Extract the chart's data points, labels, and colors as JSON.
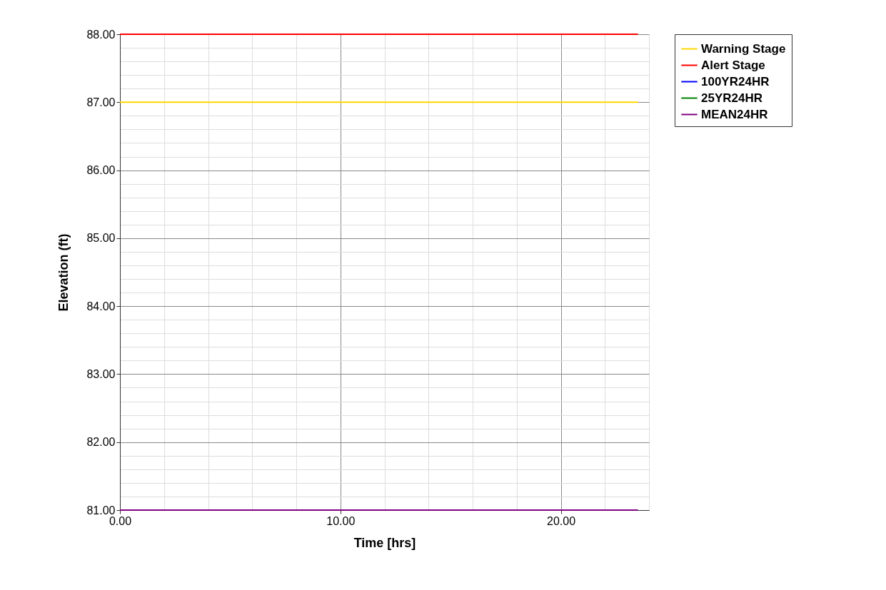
{
  "chart_data": {
    "type": "line",
    "xlabel": "Time [hrs]",
    "ylabel": "Elevation (ft)",
    "series": [
      {
        "name": "Warning Stage",
        "color": "#ffd700",
        "values": [
          87,
          87
        ]
      },
      {
        "name": "Alert Stage",
        "color": "#ff0000",
        "values": [
          88,
          88
        ]
      },
      {
        "name": "100YR24HR",
        "color": "#0000ff",
        "values": [
          null,
          null
        ]
      },
      {
        "name": "25YR24HR",
        "color": "#008000",
        "values": [
          null,
          null
        ]
      },
      {
        "name": "MEAN24HR",
        "color": "#800080",
        "values": [
          81,
          81
        ]
      }
    ],
    "x": [
      0,
      23.5
    ],
    "xlim": [
      0,
      24
    ],
    "xticks": [
      {
        "value": 0,
        "label": "0.00"
      },
      {
        "value": 2,
        "label": null
      },
      {
        "value": 4,
        "label": null
      },
      {
        "value": 6,
        "label": null
      },
      {
        "value": 8,
        "label": null
      },
      {
        "value": 10,
        "label": "10.00"
      },
      {
        "value": 12,
        "label": null
      },
      {
        "value": 14,
        "label": null
      },
      {
        "value": 16,
        "label": null
      },
      {
        "value": 18,
        "label": null
      },
      {
        "value": 20,
        "label": "20.00"
      },
      {
        "value": 22,
        "label": null
      }
    ],
    "ylim": [
      81,
      88
    ],
    "yticks": [
      {
        "value": 81,
        "label": "81.00"
      },
      {
        "value": 81.2,
        "label": null
      },
      {
        "value": 81.4,
        "label": null
      },
      {
        "value": 81.6,
        "label": null
      },
      {
        "value": 81.8,
        "label": null
      },
      {
        "value": 82,
        "label": "82.00"
      },
      {
        "value": 82.2,
        "label": null
      },
      {
        "value": 82.4,
        "label": null
      },
      {
        "value": 82.6,
        "label": null
      },
      {
        "value": 82.8,
        "label": null
      },
      {
        "value": 83,
        "label": "83.00"
      },
      {
        "value": 83.2,
        "label": null
      },
      {
        "value": 83.4,
        "label": null
      },
      {
        "value": 83.6,
        "label": null
      },
      {
        "value": 83.8,
        "label": null
      },
      {
        "value": 84,
        "label": "84.00"
      },
      {
        "value": 84.2,
        "label": null
      },
      {
        "value": 84.4,
        "label": null
      },
      {
        "value": 84.6,
        "label": null
      },
      {
        "value": 84.8,
        "label": null
      },
      {
        "value": 85,
        "label": "85.00"
      },
      {
        "value": 85.2,
        "label": null
      },
      {
        "value": 85.4,
        "label": null
      },
      {
        "value": 85.6,
        "label": null
      },
      {
        "value": 85.8,
        "label": null
      },
      {
        "value": 86,
        "label": "86.00"
      },
      {
        "value": 86.2,
        "label": null
      },
      {
        "value": 86.4,
        "label": null
      },
      {
        "value": 86.6,
        "label": null
      },
      {
        "value": 86.8,
        "label": null
      },
      {
        "value": 87,
        "label": "87.00"
      },
      {
        "value": 87.2,
        "label": null
      },
      {
        "value": 87.4,
        "label": null
      },
      {
        "value": 87.6,
        "label": null
      },
      {
        "value": 87.8,
        "label": null
      },
      {
        "value": 88,
        "label": "88.00"
      }
    ],
    "grid": true,
    "legend": "top right",
    "marker": "none",
    "line_style": "solid"
  }
}
